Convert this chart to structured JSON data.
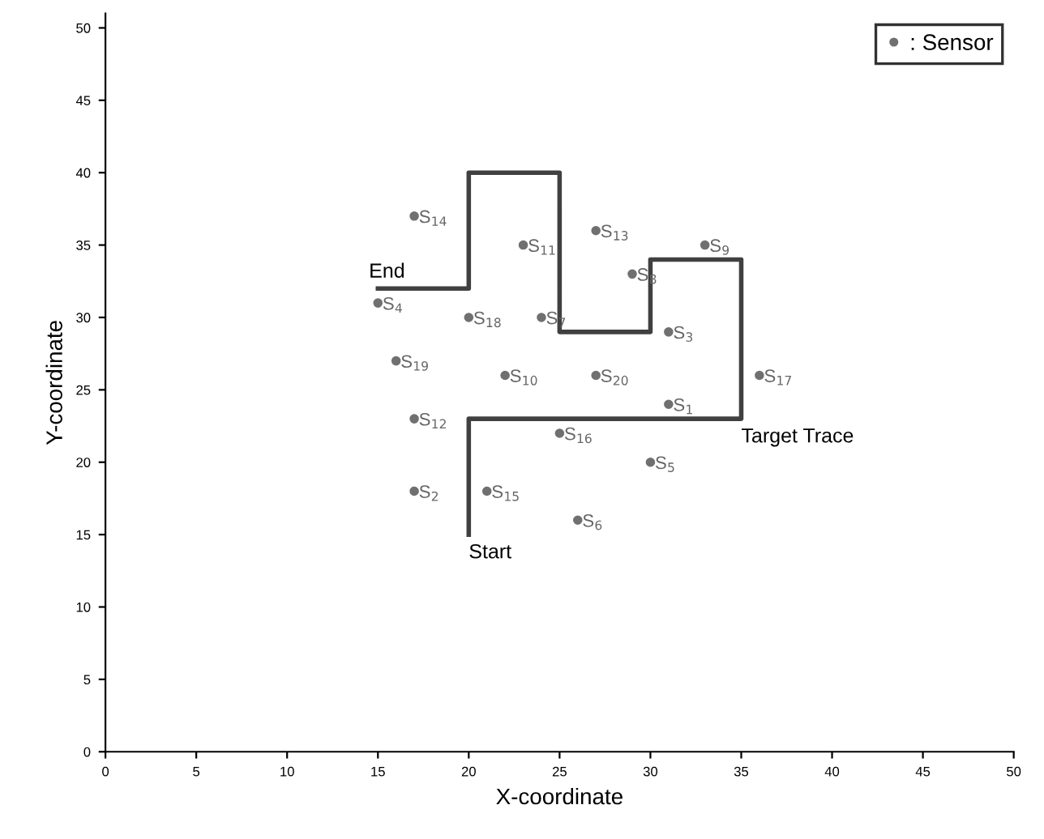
{
  "chart_data": {
    "type": "scatter",
    "xlabel": "X-coordinate",
    "ylabel": "Y-coordinate",
    "xlim": [
      0,
      50
    ],
    "ylim": [
      0,
      51
    ],
    "xticks": [
      0,
      5,
      10,
      15,
      20,
      25,
      30,
      35,
      40,
      45,
      50
    ],
    "yticks": [
      0,
      5,
      10,
      15,
      20,
      25,
      30,
      35,
      40,
      45,
      50
    ],
    "grid": false,
    "legend": "top right",
    "marker": "circle",
    "series": [
      {
        "name": ": Sensor",
        "color": "#707070",
        "x": [
          31,
          17,
          31,
          15,
          30,
          26,
          24,
          29,
          33,
          22,
          23,
          17,
          27,
          17,
          21,
          25,
          36,
          20,
          16,
          27
        ],
        "values": [
          24,
          18,
          29,
          31,
          20,
          16,
          30,
          33,
          35,
          26,
          35,
          23,
          36,
          37,
          18,
          22,
          26,
          30,
          27,
          26
        ]
      },
      {
        "type": "line",
        "color": "#404040",
        "marker": "none",
        "x": [
          20,
          20,
          35,
          35,
          30,
          30,
          25,
          25,
          20,
          20,
          15
        ],
        "values": [
          15,
          23,
          23,
          34,
          34,
          29,
          29,
          40,
          40,
          32,
          32
        ]
      }
    ],
    "annotations": [
      {
        "text": "S$_{1}$",
        "x": 31,
        "y": 24
      },
      {
        "text": "S$_{2}$",
        "x": 17,
        "y": 18
      },
      {
        "text": "S$_{3}$",
        "x": 31,
        "y": 29
      },
      {
        "text": "S$_{4}$",
        "x": 15,
        "y": 31
      },
      {
        "text": "S$_{5}$",
        "x": 30,
        "y": 20
      },
      {
        "text": "S$_{6}$",
        "x": 26,
        "y": 16
      },
      {
        "text": "S$_{7}$",
        "x": 24,
        "y": 30
      },
      {
        "text": "S$_{8}$",
        "x": 29,
        "y": 33
      },
      {
        "text": "S$_{9}$",
        "x": 33,
        "y": 35
      },
      {
        "text": "S$_{10}$",
        "x": 22,
        "y": 26
      },
      {
        "text": "S$_{11}$",
        "x": 23,
        "y": 35
      },
      {
        "text": "S$_{12}$",
        "x": 17,
        "y": 23
      },
      {
        "text": "S$_{13}$",
        "x": 27,
        "y": 36
      },
      {
        "text": "S$_{14}$",
        "x": 17,
        "y": 37
      },
      {
        "text": "S$_{15}$",
        "x": 21,
        "y": 18
      },
      {
        "text": "S$_{16}$",
        "x": 25,
        "y": 22
      },
      {
        "text": "S$_{17}$",
        "x": 36,
        "y": 26
      },
      {
        "text": "S$_{18}$",
        "x": 20,
        "y": 30
      },
      {
        "text": "S$_{19}$",
        "x": 16,
        "y": 27
      },
      {
        "text": "S$_{20}$",
        "x": 27,
        "y": 26
      },
      {
        "text": "End",
        "x": 15,
        "y": 32
      },
      {
        "text": "Start",
        "x": 20,
        "y": 15
      },
      {
        "text": "Target Trace",
        "x": 35,
        "y": 23
      }
    ]
  }
}
